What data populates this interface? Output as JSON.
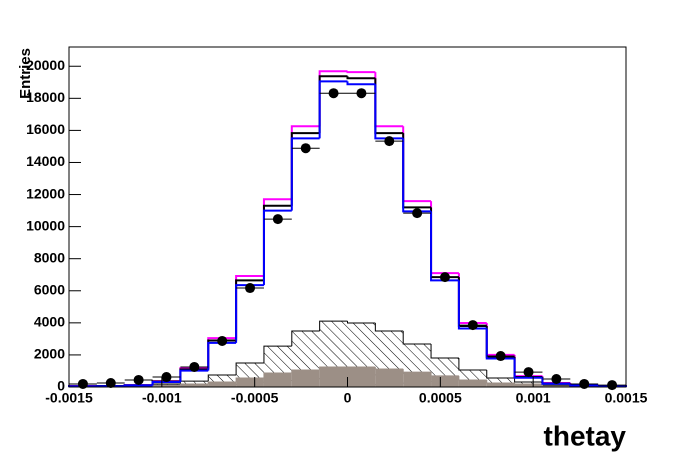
{
  "chart_data": {
    "type": "histogram",
    "x_label": "thetay",
    "y_label": "Entries",
    "bins": [
      -0.0015,
      -0.00135,
      -0.0012,
      -0.00105,
      -0.0009,
      -0.00075,
      -0.0006,
      -0.00045,
      -0.0003,
      -0.00015,
      0,
      0.00015,
      0.0003,
      0.00045,
      0.0006,
      0.00075,
      0.0009,
      0.00105,
      0.0012,
      0.00135,
      0.0015
    ],
    "xlim": [
      -0.0015,
      0.0015
    ],
    "xticks": [
      -0.0015,
      -0.001,
      -0.0005,
      0,
      0.0005,
      0.001,
      0.0015
    ],
    "ylim": [
      0,
      21200
    ],
    "yticks": [
      0,
      2000,
      4000,
      6000,
      8000,
      10000,
      12000,
      14000,
      16000,
      18000,
      20000
    ],
    "series": [
      {
        "style": "hatch",
        "color": "#000000",
        "values": [
          60,
          60,
          120,
          190,
          370,
          750,
          1500,
          2550,
          3490,
          4110,
          3990,
          3490,
          2680,
          1810,
          1060,
          560,
          310,
          120,
          60,
          60
        ]
      },
      {
        "style": "fill",
        "color": "#9c8f86",
        "values": [
          60,
          60,
          60,
          120,
          190,
          310,
          560,
          870,
          1060,
          1250,
          1250,
          1120,
          930,
          690,
          440,
          250,
          190,
          60,
          60,
          60
        ]
      },
      {
        "style": "step",
        "color": "#ff00ff",
        "values": [
          60,
          60,
          120,
          370,
          1180,
          3050,
          6920,
          11710,
          16260,
          19690,
          19630,
          16260,
          11590,
          7100,
          3990,
          2000,
          680,
          250,
          120,
          60
        ]
      },
      {
        "style": "step",
        "color": "#000000",
        "values": [
          50,
          60,
          110,
          340,
          1100,
          2900,
          6650,
          11300,
          15830,
          19380,
          19250,
          15830,
          11200,
          6850,
          3800,
          1880,
          620,
          220,
          110,
          50
        ]
      },
      {
        "style": "step",
        "color": "#0000ff",
        "values": [
          40,
          50,
          100,
          310,
          1020,
          2750,
          6350,
          11000,
          15500,
          19060,
          18880,
          15500,
          10950,
          6650,
          3650,
          1780,
          580,
          200,
          100,
          40
        ]
      },
      {
        "style": "points",
        "color": "#000000",
        "values": [
          190,
          250,
          440,
          620,
          1250,
          2870,
          6170,
          10470,
          14890,
          18320,
          18320,
          15330,
          10840,
          6850,
          3860,
          1930,
          930,
          500,
          190,
          120
        ]
      }
    ]
  }
}
